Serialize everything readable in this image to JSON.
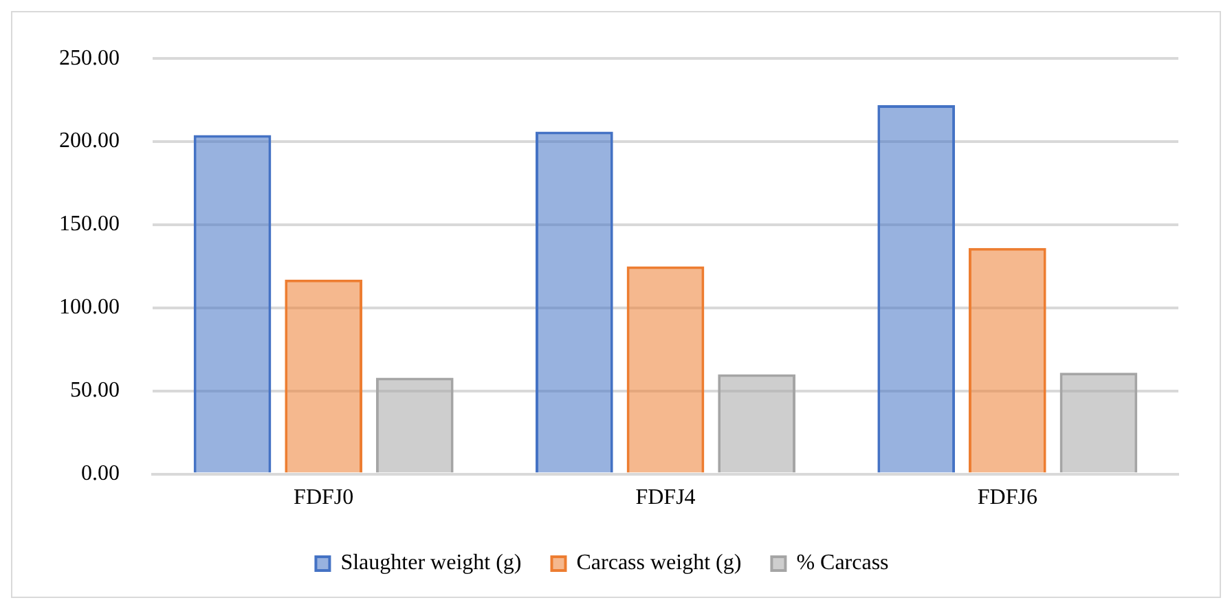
{
  "chart_data": {
    "type": "bar",
    "categories": [
      "FDFJ0",
      "FDFJ4",
      "FDFJ6"
    ],
    "series": [
      {
        "name": "Slaughter weight (g)",
        "color": "#4472c4",
        "values": [
          204,
          206,
          222
        ]
      },
      {
        "name": "Carcass weight (g)",
        "color": "#ed7d31",
        "values": [
          117,
          125,
          136
        ]
      },
      {
        "name": "% Carcass",
        "color": "#a5a5a5",
        "values": [
          58,
          60,
          61
        ]
      }
    ],
    "ylim": [
      0,
      250
    ],
    "yticks": [
      {
        "value": 0,
        "label": "0.00"
      },
      {
        "value": 50,
        "label": "50.00"
      },
      {
        "value": 100,
        "label": "100.00"
      },
      {
        "value": 150,
        "label": "150.00"
      },
      {
        "value": 200,
        "label": "200.00"
      },
      {
        "value": 250,
        "label": "250.00"
      }
    ],
    "grid": "y",
    "legend": "bottom"
  }
}
